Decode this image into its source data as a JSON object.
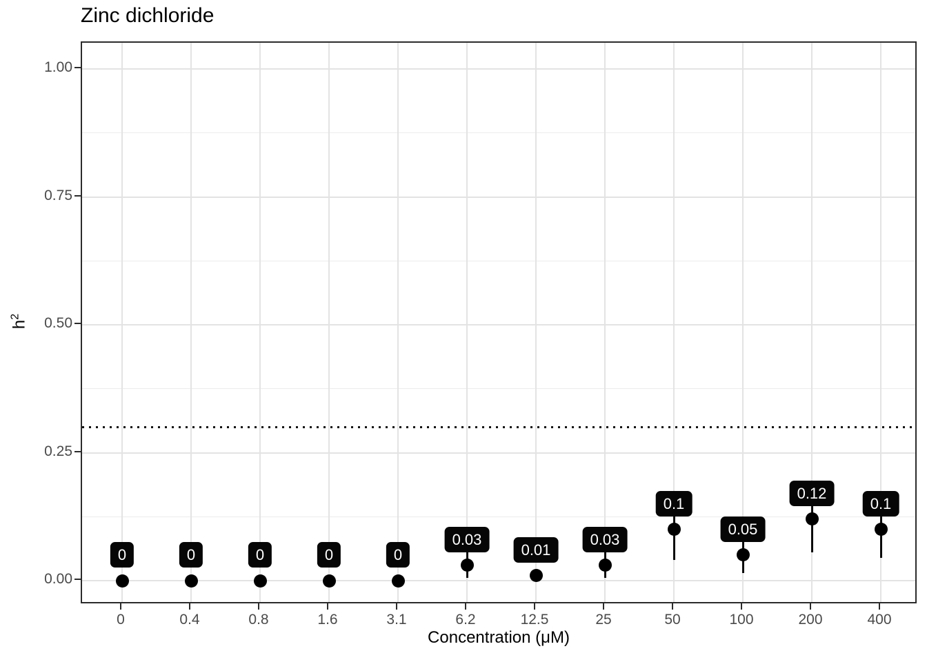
{
  "chart_data": {
    "type": "scatter",
    "title": "Zinc dichloride",
    "xlabel": "Concentration (μM)",
    "ylabel_base": "h",
    "ylabel_sup": "2",
    "categories": [
      "0",
      "0.4",
      "0.8",
      "1.6",
      "3.1",
      "6.2",
      "12.5",
      "25",
      "50",
      "100",
      "200",
      "400"
    ],
    "points": [
      {
        "category": "0",
        "h2": 0.0,
        "label": "0",
        "ymin": null,
        "ymax": null
      },
      {
        "category": "0.4",
        "h2": 0.0,
        "label": "0",
        "ymin": null,
        "ymax": null
      },
      {
        "category": "0.8",
        "h2": 0.0,
        "label": "0",
        "ymin": null,
        "ymax": null
      },
      {
        "category": "1.6",
        "h2": 0.0,
        "label": "0",
        "ymin": null,
        "ymax": null
      },
      {
        "category": "3.1",
        "h2": 0.0,
        "label": "0",
        "ymin": null,
        "ymax": null
      },
      {
        "category": "6.2",
        "h2": 0.03,
        "label": "0.03",
        "ymin": 0.005,
        "ymax": 0.055
      },
      {
        "category": "12.5",
        "h2": 0.01,
        "label": "0.01",
        "ymin": null,
        "ymax": null
      },
      {
        "category": "25",
        "h2": 0.03,
        "label": "0.03",
        "ymin": 0.005,
        "ymax": 0.055
      },
      {
        "category": "50",
        "h2": 0.1,
        "label": "0.1",
        "ymin": 0.04,
        "ymax": 0.16
      },
      {
        "category": "100",
        "h2": 0.05,
        "label": "0.05",
        "ymin": 0.015,
        "ymax": 0.085
      },
      {
        "category": "200",
        "h2": 0.12,
        "label": "0.12",
        "ymin": 0.055,
        "ymax": 0.185
      },
      {
        "category": "400",
        "h2": 0.1,
        "label": "0.1",
        "ymin": 0.045,
        "ymax": 0.155
      }
    ],
    "threshold": 0.3,
    "threshold_style": "dotted",
    "ylim": [
      0,
      1.05
    ],
    "yticks": [
      {
        "value": 0.0,
        "label": "0.00"
      },
      {
        "value": 0.25,
        "label": "0.25"
      },
      {
        "value": 0.5,
        "label": "0.50"
      },
      {
        "value": 0.75,
        "label": "0.75"
      },
      {
        "value": 1.0,
        "label": "1.00"
      }
    ],
    "yticks_minor": [
      0.125,
      0.375,
      0.625,
      0.875
    ],
    "grid": true,
    "legend": "none"
  },
  "colors": {
    "point": "#000000",
    "error_bar": "#0a0a0a",
    "label_background": "#060606",
    "label_text": "#ffffff",
    "threshold_line": "#111111",
    "grid_major": "#e3e3e3",
    "grid_minor": "#ececec",
    "axis_text": "#4a4a4a",
    "axis_line": "#2b2b2b",
    "background": "#ffffff"
  }
}
